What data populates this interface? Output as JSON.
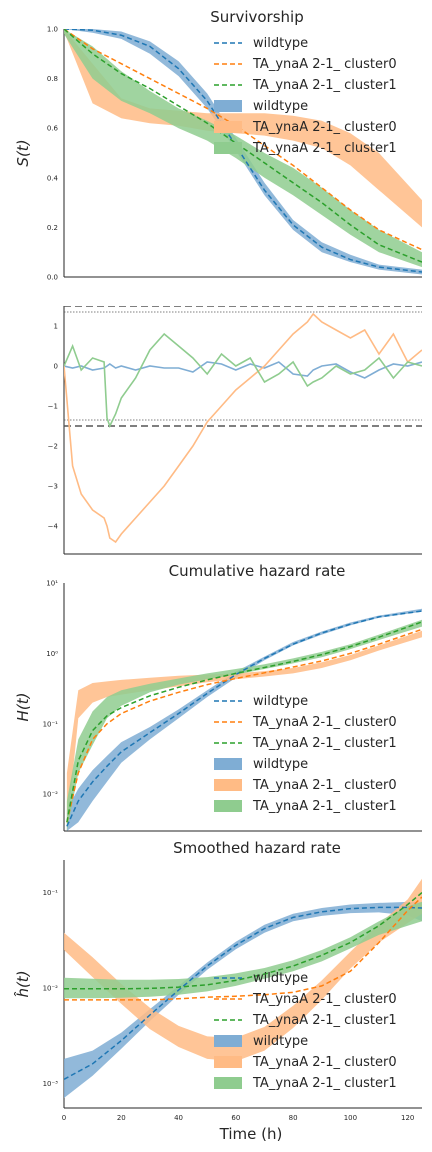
{
  "colors": {
    "wildtype": "#1f77b4",
    "cluster0": "#ff7f0e",
    "cluster1": "#2ca02c",
    "band_wildtype": "#7fadd4",
    "band_cluster0": "#ffbb85",
    "band_cluster1": "#8fcc8f",
    "threshold": "#555555"
  },
  "xaxis": {
    "label": "Time (h)",
    "ticks": [
      "0",
      "20",
      "40",
      "60",
      "80",
      "100",
      "120"
    ],
    "range": [
      0,
      125
    ]
  },
  "chart_data": [
    {
      "type": "line",
      "title": "Survivorship",
      "ylabel": "S(t)",
      "yscale": "linear",
      "ylim": [
        0,
        1
      ],
      "yticks": [
        "0.0",
        "0.2",
        "0.4",
        "0.6",
        "0.8",
        "1.0"
      ],
      "legend": {
        "placement": "top-right",
        "entries": [
          "wildtype",
          "TA_ynaA 2-1_ cluster0",
          "TA_ynaA 2-1_ cluster1",
          "wildtype",
          "TA_ynaA 2-1_ cluster0",
          "TA_ynaA 2-1_ cluster1"
        ]
      },
      "x": [
        0,
        10,
        20,
        30,
        40,
        50,
        60,
        70,
        80,
        90,
        100,
        110,
        125
      ],
      "series": [
        {
          "name": "wildtype",
          "values": [
            1.0,
            0.995,
            0.975,
            0.93,
            0.84,
            0.71,
            0.53,
            0.35,
            0.21,
            0.12,
            0.07,
            0.04,
            0.02
          ],
          "band_lo": [
            1.0,
            0.985,
            0.96,
            0.9,
            0.81,
            0.68,
            0.51,
            0.33,
            0.19,
            0.1,
            0.06,
            0.03,
            0.01
          ],
          "band_hi": [
            1.0,
            1.0,
            0.99,
            0.95,
            0.87,
            0.74,
            0.56,
            0.38,
            0.23,
            0.14,
            0.09,
            0.05,
            0.03
          ]
        },
        {
          "name": "TA_ynaA 2-1_ cluster0",
          "values": [
            1.0,
            0.92,
            0.86,
            0.8,
            0.74,
            0.68,
            0.61,
            0.53,
            0.45,
            0.36,
            0.27,
            0.19,
            0.11
          ],
          "band_lo": [
            0.99,
            0.7,
            0.64,
            0.62,
            0.61,
            0.59,
            0.58,
            0.57,
            0.55,
            0.52,
            0.45,
            0.35,
            0.2
          ],
          "band_hi": [
            1.0,
            0.86,
            0.72,
            0.68,
            0.67,
            0.66,
            0.66,
            0.66,
            0.65,
            0.63,
            0.58,
            0.5,
            0.31
          ]
        },
        {
          "name": "TA_ynaA 2-1_ cluster1",
          "values": [
            1.0,
            0.9,
            0.82,
            0.76,
            0.69,
            0.62,
            0.54,
            0.46,
            0.38,
            0.3,
            0.21,
            0.13,
            0.06
          ],
          "band_lo": [
            0.98,
            0.8,
            0.71,
            0.66,
            0.6,
            0.55,
            0.48,
            0.4,
            0.33,
            0.25,
            0.17,
            0.1,
            0.04
          ],
          "band_hi": [
            1.0,
            0.93,
            0.83,
            0.75,
            0.68,
            0.63,
            0.57,
            0.5,
            0.44,
            0.36,
            0.27,
            0.19,
            0.1
          ]
        }
      ]
    },
    {
      "type": "line",
      "title": "",
      "ylabel": "",
      "yscale": "linear",
      "ylim": [
        -4.7,
        1.5
      ],
      "yticks": [
        "−4",
        "−3",
        "−2",
        "−1",
        "0",
        "1"
      ],
      "thresholds_dashed": [
        1.5,
        -1.5
      ],
      "thresholds_dotted": [
        1.35,
        -1.35
      ],
      "x": [
        0,
        3,
        6,
        10,
        14,
        15,
        16,
        18,
        20,
        25,
        30,
        35,
        40,
        45,
        50,
        55,
        60,
        65,
        70,
        75,
        80,
        85,
        87,
        90,
        95,
        100,
        105,
        110,
        115,
        120,
        125
      ],
      "series": [
        {
          "name": "wildtype",
          "values": [
            0.0,
            -0.05,
            0.0,
            -0.1,
            -0.05,
            0.0,
            0.05,
            -0.05,
            0.0,
            -0.1,
            0.0,
            -0.05,
            -0.05,
            -0.15,
            0.1,
            0.05,
            -0.1,
            0.05,
            -0.05,
            0.1,
            -0.2,
            -0.25,
            -0.1,
            0.0,
            0.05,
            -0.15,
            -0.3,
            -0.1,
            0.05,
            0.0,
            0.1
          ]
        },
        {
          "name": "TA_ynaA 2-1_ cluster0",
          "values": [
            0.0,
            -2.5,
            -3.2,
            -3.6,
            -3.8,
            -4.0,
            -4.3,
            -4.4,
            -4.2,
            -3.8,
            -3.4,
            -3.0,
            -2.5,
            -2.0,
            -1.4,
            -1.0,
            -0.6,
            -0.3,
            0.0,
            0.4,
            0.8,
            1.1,
            1.3,
            1.1,
            0.9,
            0.7,
            0.9,
            0.3,
            0.8,
            0.1,
            0.4
          ]
        },
        {
          "name": "TA_ynaA 2-1_ cluster1",
          "values": [
            0.0,
            0.5,
            -0.1,
            0.2,
            0.1,
            -1.3,
            -1.5,
            -1.2,
            -0.8,
            -0.3,
            0.4,
            0.8,
            0.5,
            0.2,
            -0.2,
            0.3,
            0.0,
            0.2,
            -0.4,
            -0.2,
            0.1,
            -0.5,
            -0.4,
            -0.3,
            0.0,
            -0.2,
            -0.1,
            0.2,
            -0.3,
            0.1,
            0.0
          ]
        }
      ]
    },
    {
      "type": "line",
      "title": "Cumulative hazard rate",
      "ylabel": "H(t)",
      "yscale": "log",
      "ylim": [
        0.003,
        10
      ],
      "yticks": [
        "10⁻²",
        "10⁻¹",
        "10⁰",
        "10¹"
      ],
      "legend": {
        "placement": "lower-right",
        "entries": [
          "wildtype",
          "TA_ynaA 2-1_ cluster0",
          "TA_ynaA 2-1_ cluster1",
          "wildtype",
          "TA_ynaA 2-1_ cluster0",
          "TA_ynaA 2-1_ cluster1"
        ]
      },
      "x": [
        1,
        5,
        10,
        15,
        20,
        30,
        40,
        50,
        60,
        70,
        80,
        90,
        100,
        110,
        125
      ],
      "series": [
        {
          "name": "wildtype",
          "values": [
            0.0035,
            0.008,
            0.015,
            0.025,
            0.04,
            0.075,
            0.14,
            0.27,
            0.5,
            0.85,
            1.35,
            1.95,
            2.6,
            3.3,
            4.0
          ],
          "band_lo": [
            0.003,
            0.004,
            0.008,
            0.015,
            0.028,
            0.06,
            0.12,
            0.24,
            0.45,
            0.8,
            1.3,
            1.85,
            2.5,
            3.2,
            3.9
          ],
          "band_hi": [
            0.006,
            0.012,
            0.022,
            0.035,
            0.055,
            0.09,
            0.16,
            0.3,
            0.55,
            0.9,
            1.45,
            2.05,
            2.75,
            3.45,
            4.3
          ]
        },
        {
          "name": "TA_ynaA 2-1_ cluster0",
          "values": [
            0.004,
            0.02,
            0.06,
            0.1,
            0.14,
            0.21,
            0.28,
            0.36,
            0.44,
            0.53,
            0.64,
            0.78,
            1.0,
            1.35,
            2.2
          ],
          "band_lo": [
            0.003,
            0.12,
            0.2,
            0.24,
            0.26,
            0.3,
            0.34,
            0.39,
            0.43,
            0.47,
            0.52,
            0.62,
            0.8,
            1.1,
            1.7
          ],
          "band_hi": [
            0.02,
            0.3,
            0.38,
            0.4,
            0.42,
            0.45,
            0.48,
            0.5,
            0.52,
            0.56,
            0.62,
            0.75,
            0.95,
            1.3,
            2.1
          ]
        },
        {
          "name": "TA_ynaA 2-1_ cluster1",
          "values": [
            0.004,
            0.03,
            0.08,
            0.13,
            0.17,
            0.25,
            0.33,
            0.42,
            0.52,
            0.63,
            0.77,
            0.96,
            1.25,
            1.7,
            2.8
          ],
          "band_lo": [
            0.003,
            0.02,
            0.05,
            0.12,
            0.18,
            0.28,
            0.36,
            0.43,
            0.5,
            0.6,
            0.72,
            0.88,
            1.15,
            1.55,
            2.4
          ],
          "band_hi": [
            0.008,
            0.06,
            0.15,
            0.24,
            0.3,
            0.37,
            0.44,
            0.52,
            0.6,
            0.7,
            0.85,
            1.05,
            1.35,
            1.85,
            3.0
          ]
        }
      ]
    },
    {
      "type": "line",
      "title": "Smoothed hazard rate",
      "ylabel": "ĥ(t)",
      "yscale": "log",
      "ylim": [
        0.00055,
        0.22
      ],
      "yticks": [
        "10⁻³",
        "10⁻²",
        "10⁻¹"
      ],
      "legend": {
        "placement": "lower-right",
        "entries": [
          "wildtype",
          "TA_ynaA 2-1_ cluster0",
          "TA_ynaA 2-1_ cluster1",
          "wildtype",
          "TA_ynaA 2-1_ cluster0",
          "TA_ynaA 2-1_ cluster1"
        ]
      },
      "x": [
        0,
        10,
        20,
        30,
        40,
        50,
        60,
        70,
        80,
        90,
        100,
        110,
        120,
        125
      ],
      "series": [
        {
          "name": "wildtype",
          "values": [
            0.0011,
            0.0016,
            0.0028,
            0.0052,
            0.0095,
            0.017,
            0.028,
            0.042,
            0.055,
            0.063,
            0.068,
            0.07,
            0.07,
            0.069
          ],
          "band_lo": [
            0.0007,
            0.0012,
            0.0023,
            0.0045,
            0.0085,
            0.0155,
            0.0255,
            0.038,
            0.05,
            0.057,
            0.061,
            0.062,
            0.058,
            0.05
          ],
          "band_hi": [
            0.0018,
            0.0022,
            0.0034,
            0.006,
            0.0105,
            0.0185,
            0.0305,
            0.046,
            0.06,
            0.069,
            0.075,
            0.078,
            0.08,
            0.08
          ]
        },
        {
          "name": "TA_ynaA 2-1_ cluster0",
          "values": [
            0.0075,
            0.0075,
            0.0075,
            0.0075,
            0.0077,
            0.008,
            0.0082,
            0.0085,
            0.009,
            0.0105,
            0.015,
            0.03,
            0.065,
            0.09
          ],
          "band_lo": [
            0.025,
            0.013,
            0.0068,
            0.0037,
            0.0024,
            0.0018,
            0.0017,
            0.0022,
            0.0038,
            0.0075,
            0.016,
            0.03,
            0.048,
            0.06
          ],
          "band_hi": [
            0.038,
            0.021,
            0.011,
            0.0062,
            0.004,
            0.0031,
            0.003,
            0.0039,
            0.0065,
            0.012,
            0.024,
            0.047,
            0.085,
            0.14
          ]
        },
        {
          "name": "TA_ynaA 2-1_ cluster1",
          "values": [
            0.0098,
            0.0098,
            0.0098,
            0.0099,
            0.0102,
            0.0108,
            0.012,
            0.014,
            0.017,
            0.022,
            0.03,
            0.045,
            0.075,
            0.1
          ],
          "band_lo": [
            0.0078,
            0.0078,
            0.0079,
            0.0081,
            0.0085,
            0.0092,
            0.0105,
            0.0125,
            0.015,
            0.019,
            0.026,
            0.036,
            0.045,
            0.05
          ],
          "band_hi": [
            0.0128,
            0.0125,
            0.0122,
            0.0122,
            0.0124,
            0.013,
            0.0142,
            0.0162,
            0.0195,
            0.025,
            0.034,
            0.05,
            0.072,
            0.08
          ]
        }
      ]
    }
  ]
}
